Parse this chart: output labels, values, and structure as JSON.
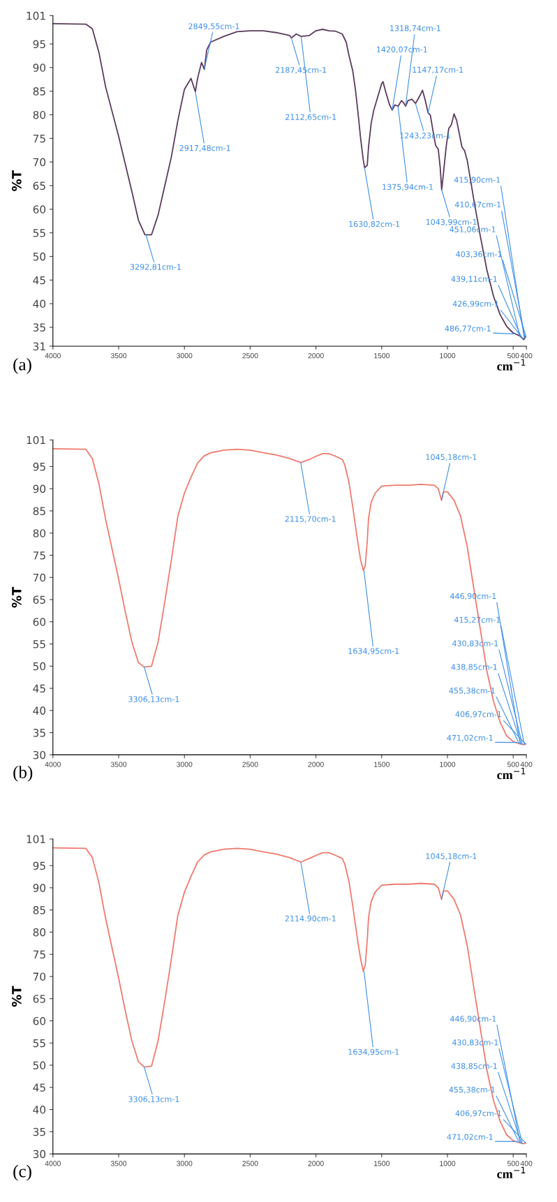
{
  "chart_data": [
    {
      "type": "line",
      "xlabel": "cm$^{−1}$",
      "ylabel": "%T",
      "xlim": [
        4000,
        400
      ],
      "ylim": [
        31,
        101
      ],
      "xticks": [
        4000,
        3500,
        3000,
        2500,
        2000,
        1500,
        1000,
        500,
        400
      ],
      "yticks": [
        31,
        35,
        40,
        45,
        50,
        55,
        60,
        65,
        70,
        75,
        80,
        85,
        90,
        95,
        101
      ],
      "series": [
        {
          "color": "#5b3a5e",
          "x": [
            4000,
            3750,
            3700,
            3650,
            3600,
            3500,
            3400,
            3350,
            3300,
            3250,
            3200,
            3100,
            3050,
            3000,
            2970,
            2950,
            2917,
            2900,
            2870,
            2849,
            2830,
            2800,
            2700,
            2600,
            2500,
            2400,
            2300,
            2200,
            2187,
            2150,
            2112,
            2050,
            2000,
            1950,
            1900,
            1850,
            1800,
            1770,
            1750,
            1720,
            1700,
            1680,
            1660,
            1640,
            1630,
            1610,
            1600,
            1580,
            1560,
            1530,
            1500,
            1490,
            1470,
            1440,
            1420,
            1400,
            1375,
            1350,
            1330,
            1318,
            1300,
            1270,
            1243,
            1220,
            1200,
            1190,
            1170,
            1147,
            1130,
            1110,
            1090,
            1070,
            1055,
            1044,
            1030,
            1010,
            990,
            970,
            950,
            930,
            910,
            890,
            870,
            850,
            800,
            750,
            700,
            650,
            600,
            550,
            500,
            450,
            420,
            400
          ],
          "values": [
            99.3,
            99.2,
            98.2,
            93.2,
            86,
            75.4,
            63.8,
            57.7,
            54.6,
            54.6,
            58.8,
            71,
            78.8,
            85.4,
            86.8,
            87.7,
            84.9,
            87.7,
            91.1,
            89.6,
            93.8,
            95.4,
            96.6,
            97.6,
            97.8,
            97.8,
            97.4,
            96.8,
            96.3,
            97.1,
            96.6,
            96.8,
            97.8,
            98.1,
            97.8,
            97.7,
            97.1,
            95.4,
            92.7,
            89.3,
            85.4,
            80.4,
            74.9,
            70.4,
            68.8,
            69.3,
            73.2,
            78.2,
            81,
            83.8,
            86.6,
            87,
            84.9,
            82.1,
            81,
            82.1,
            81.8,
            83,
            82.4,
            81.8,
            83,
            83.3,
            82.4,
            83.5,
            84.6,
            85.2,
            83.2,
            80.4,
            79.9,
            76.6,
            73.5,
            72.7,
            68.8,
            64.1,
            67.7,
            73.2,
            77.1,
            77.9,
            80.2,
            78.8,
            76,
            73.2,
            72.4,
            70.4,
            62.1,
            54.3,
            47.1,
            41.6,
            37.7,
            35.2,
            33.8,
            33.2,
            32.4,
            33.2
          ]
        }
      ],
      "annotations": [
        "(a)",
        {
          "text": "3292,81cm-1",
          "x": 3292.81,
          "y": 54.6
        },
        {
          "text": "2849,55cm-1",
          "x": 2849.55,
          "y": 89.6
        },
        {
          "text": "2917,48cm-1",
          "x": 2917.48,
          "y": 84.9
        },
        {
          "text": "2112,65cm-1",
          "x": 2112.65,
          "y": 96.6
        },
        {
          "text": "2187,45cm-1",
          "x": 2187.45,
          "y": 96.3
        },
        {
          "text": "1420,07cm-1",
          "x": 1420.07,
          "y": 81
        },
        {
          "text": "1630,82cm-1",
          "x": 1630.82,
          "y": 68.8
        },
        {
          "text": "1318,74cm-1",
          "x": 1318.74,
          "y": 81.8
        },
        {
          "text": "1375,94cm-1",
          "x": 1375.94,
          "y": 81.8
        },
        {
          "text": "1147,17cm-1",
          "x": 1147.17,
          "y": 80.4
        },
        {
          "text": "1243,23cm-1",
          "x": 1243.23,
          "y": 82.4
        },
        {
          "text": "1043,99cm-1",
          "x": 1043.99,
          "y": 64.1
        },
        {
          "text": "486,77cm-1",
          "x": 486.77,
          "y": 33.6
        },
        {
          "text": "426,99cm-1",
          "x": 426.99,
          "y": 32.6
        },
        {
          "text": "439,11cm-1",
          "x": 439.11,
          "y": 33
        },
        {
          "text": "403,36cm-1",
          "x": 403.36,
          "y": 33.1
        },
        {
          "text": "451,06cm-1",
          "x": 451.06,
          "y": 33.2
        },
        {
          "text": "410,67cm-1",
          "x": 410.67,
          "y": 32.8
        },
        {
          "text": "415,90cm-1",
          "x": 415.9,
          "y": 32.6
        }
      ]
    },
    {
      "type": "line",
      "xlabel": "cm$^{−1}$",
      "ylabel": "%T",
      "xlim": [
        4000,
        400
      ],
      "ylim": [
        30,
        101
      ],
      "xticks": [
        4000,
        3500,
        3000,
        2500,
        2000,
        1500,
        1000,
        500,
        400
      ],
      "yticks": [
        30,
        35,
        40,
        45,
        50,
        55,
        60,
        65,
        70,
        75,
        80,
        85,
        90,
        95,
        101
      ],
      "series": [
        {
          "color": "#f07a6e",
          "x": [
            4000,
            3750,
            3700,
            3650,
            3600,
            3500,
            3450,
            3400,
            3350,
            3306,
            3250,
            3200,
            3150,
            3100,
            3050,
            3000,
            2950,
            2900,
            2850,
            2800,
            2700,
            2600,
            2500,
            2400,
            2300,
            2200,
            2115,
            2050,
            2000,
            1950,
            1900,
            1850,
            1800,
            1780,
            1750,
            1720,
            1700,
            1680,
            1660,
            1640,
            1625,
            1610,
            1600,
            1580,
            1550,
            1500,
            1400,
            1300,
            1200,
            1100,
            1070,
            1045,
            1030,
            1000,
            950,
            900,
            850,
            800,
            750,
            700,
            650,
            600,
            550,
            500,
            450,
            420,
            400
          ],
          "values": [
            99,
            98.9,
            96.8,
            91.1,
            83.2,
            69.6,
            62.3,
            55.5,
            50.8,
            49.8,
            50,
            55.5,
            64.4,
            73.8,
            83.8,
            89,
            92.6,
            95.8,
            97.4,
            98.1,
            98.7,
            98.9,
            98.7,
            98.1,
            97.6,
            96.8,
            95.9,
            96.6,
            97.3,
            97.9,
            97.9,
            97.3,
            96.6,
            95.3,
            91.6,
            85.9,
            81.7,
            77.6,
            73.9,
            71.6,
            72.6,
            78.1,
            83.3,
            86.9,
            89,
            90.6,
            90.8,
            90.8,
            91,
            90.8,
            90,
            87.4,
            89.3,
            89.3,
            87.4,
            83.8,
            77,
            67.6,
            58.3,
            48.9,
            42.1,
            37.4,
            34.3,
            33,
            32.5,
            32.3,
            32.5
          ]
        }
      ],
      "annotations": [
        "(b)",
        {
          "text": "3306,13cm-1",
          "x": 3306.13,
          "y": 49.8
        },
        {
          "text": "2115,70cm-1",
          "x": 2115.7,
          "y": 95.9
        },
        {
          "text": "1634,95cm-1",
          "x": 1634.95,
          "y": 71.6
        },
        {
          "text": "1045,18cm-1",
          "x": 1045.18,
          "y": 87.4
        },
        {
          "text": "471,02cm-1",
          "x": 471.02,
          "y": 32.8
        },
        {
          "text": "406,97cm-1",
          "x": 406.97,
          "y": 32.5
        },
        {
          "text": "455,38cm-1",
          "x": 455.38,
          "y": 32.6
        },
        {
          "text": "438,85cm-1",
          "x": 438.85,
          "y": 32.4
        },
        {
          "text": "430,83cm-1",
          "x": 430.83,
          "y": 32.4
        },
        {
          "text": "415,27cm-1",
          "x": 415.27,
          "y": 32.3
        },
        {
          "text": "446,90cm-1",
          "x": 446.9,
          "y": 32.5
        }
      ]
    },
    {
      "type": "line",
      "xlabel": "cm$^{−1}$",
      "ylabel": "%T",
      "xlim": [
        4000,
        400
      ],
      "ylim": [
        30,
        101
      ],
      "xticks": [
        4000,
        3500,
        3000,
        2500,
        2000,
        1500,
        1000,
        500,
        400
      ],
      "yticks": [
        30,
        35,
        40,
        45,
        50,
        55,
        60,
        65,
        70,
        75,
        80,
        85,
        90,
        95,
        101
      ],
      "series": [
        {
          "color": "#f07a6e",
          "x": [
            4000,
            3750,
            3700,
            3650,
            3600,
            3500,
            3450,
            3400,
            3350,
            3306,
            3250,
            3200,
            3150,
            3100,
            3050,
            3000,
            2950,
            2900,
            2850,
            2800,
            2700,
            2600,
            2500,
            2400,
            2300,
            2200,
            2115,
            2050,
            2000,
            1950,
            1900,
            1850,
            1800,
            1780,
            1750,
            1720,
            1700,
            1680,
            1660,
            1640,
            1625,
            1610,
            1600,
            1580,
            1550,
            1500,
            1400,
            1300,
            1200,
            1100,
            1070,
            1045,
            1030,
            1000,
            950,
            900,
            850,
            800,
            750,
            700,
            650,
            600,
            550,
            500,
            450,
            420,
            400
          ],
          "values": [
            99,
            98.9,
            96.8,
            91.1,
            83.2,
            69.6,
            62.3,
            55.5,
            50.8,
            49.6,
            49.8,
            55.5,
            64.4,
            73.8,
            83.8,
            89,
            92.6,
            95.8,
            97.4,
            98.1,
            98.7,
            98.9,
            98.7,
            98.1,
            97.6,
            96.8,
            95.8,
            96.6,
            97.3,
            97.9,
            97.9,
            97.3,
            96.6,
            95.3,
            91.6,
            85.9,
            81.7,
            77.6,
            73.9,
            71.2,
            72.6,
            78.1,
            83.3,
            86.9,
            89,
            90.6,
            90.8,
            90.8,
            91,
            90.8,
            90,
            87.4,
            89.3,
            89.3,
            87.4,
            83.8,
            77,
            67.6,
            58.3,
            48.9,
            42.1,
            37.4,
            34.3,
            33,
            32.5,
            32.3,
            32.5
          ]
        }
      ],
      "annotations": [
        "(c)",
        {
          "text": "3306,13cm-1",
          "x": 3306.13,
          "y": 49.6
        },
        {
          "text": "2114.90cm-1",
          "x": 2114.9,
          "y": 95.8
        },
        {
          "text": "1634,95cm-1",
          "x": 1634.95,
          "y": 71.2
        },
        {
          "text": "1045,18cm-1",
          "x": 1045.18,
          "y": 87.4
        },
        {
          "text": "471,02cm-1",
          "x": 471.02,
          "y": 32.8
        },
        {
          "text": "406,97cm-1",
          "x": 406.97,
          "y": 32.5
        },
        {
          "text": "455,38cm-1",
          "x": 455.38,
          "y": 32.6
        },
        {
          "text": "438,85cm-1",
          "x": 438.85,
          "y": 32.4
        },
        {
          "text": "430,83cm-1",
          "x": 430.83,
          "y": 32.4
        },
        {
          "text": "446,90cm-1",
          "x": 446.9,
          "y": 32.5
        }
      ]
    }
  ]
}
